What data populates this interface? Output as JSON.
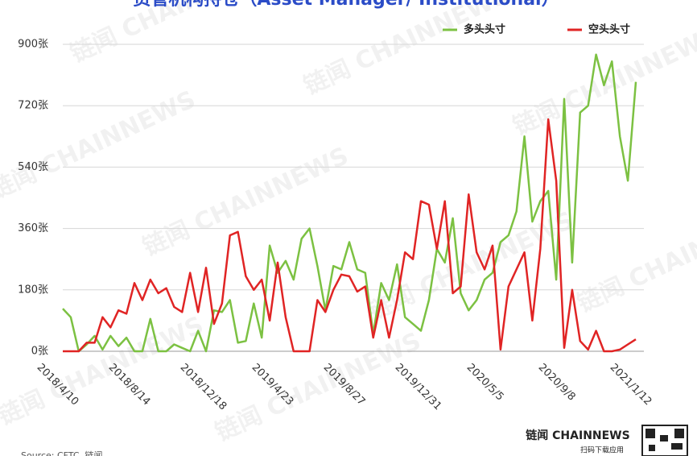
{
  "chart_data": {
    "type": "line",
    "title": "资管机构持仓（Asset Manager/ Institutional）",
    "categories": [
      "2018/4/10",
      null,
      null,
      null,
      null,
      null,
      null,
      null,
      null,
      "2018/8/14",
      null,
      null,
      null,
      null,
      null,
      null,
      null,
      null,
      "2018/12/18",
      null,
      null,
      null,
      null,
      null,
      null,
      null,
      null,
      "2019/4/23",
      null,
      null,
      null,
      null,
      null,
      null,
      null,
      null,
      "2019/8/27",
      null,
      null,
      null,
      null,
      null,
      null,
      null,
      null,
      "2019/12/31",
      null,
      null,
      null,
      null,
      null,
      null,
      null,
      null,
      "2020/5/5",
      null,
      null,
      null,
      null,
      null,
      null,
      null,
      null,
      "2020/9/8",
      null,
      null,
      null,
      null,
      null,
      null,
      null,
      null,
      "2021/1/12"
    ],
    "series": [
      {
        "name": "多头头寸",
        "color": "#7cc142",
        "values": [
          125,
          100,
          0,
          20,
          45,
          5,
          45,
          15,
          40,
          0,
          0,
          95,
          0,
          0,
          20,
          10,
          0,
          60,
          0,
          120,
          115,
          150,
          25,
          30,
          140,
          40,
          310,
          230,
          265,
          210,
          330,
          360,
          250,
          120,
          250,
          240,
          320,
          240,
          230,
          50,
          200,
          150,
          255,
          100,
          80,
          60,
          150,
          300,
          260,
          390,
          170,
          120,
          150,
          210,
          230,
          320,
          340,
          410,
          630,
          380,
          440,
          470,
          210,
          740,
          260,
          700,
          720,
          870,
          780,
          850,
          630,
          500,
          790
        ]
      },
      {
        "name": "空头头寸",
        "color": "#e02424",
        "values": [
          0,
          0,
          0,
          25,
          25,
          100,
          70,
          120,
          110,
          200,
          150,
          210,
          170,
          185,
          130,
          115,
          230,
          115,
          245,
          80,
          140,
          340,
          350,
          220,
          180,
          210,
          90,
          260,
          100,
          0,
          0,
          0,
          150,
          115,
          180,
          225,
          220,
          175,
          190,
          40,
          150,
          40,
          150,
          290,
          270,
          440,
          430,
          300,
          440,
          170,
          190,
          460,
          290,
          240,
          310,
          5,
          190,
          240,
          290,
          90,
          300,
          680,
          500,
          10,
          180,
          30,
          5,
          60,
          0,
          0,
          5,
          20,
          35
        ]
      }
    ],
    "ylim": [
      0,
      900
    ],
    "yticks": [
      {
        "value": 0,
        "label": "0张"
      },
      {
        "value": 180,
        "label": "180张"
      },
      {
        "value": 360,
        "label": "360张"
      },
      {
        "value": 540,
        "label": "540张"
      },
      {
        "value": 720,
        "label": "720张"
      },
      {
        "value": 900,
        "label": "900张"
      }
    ],
    "grid": true,
    "legend": "top-right",
    "source": "Source: CFTC, 链闻",
    "watermark": "链闻 CHAINNEWS",
    "brand": "链闻 CHAINNEWS",
    "brand_sub": "扫码下载应用"
  }
}
